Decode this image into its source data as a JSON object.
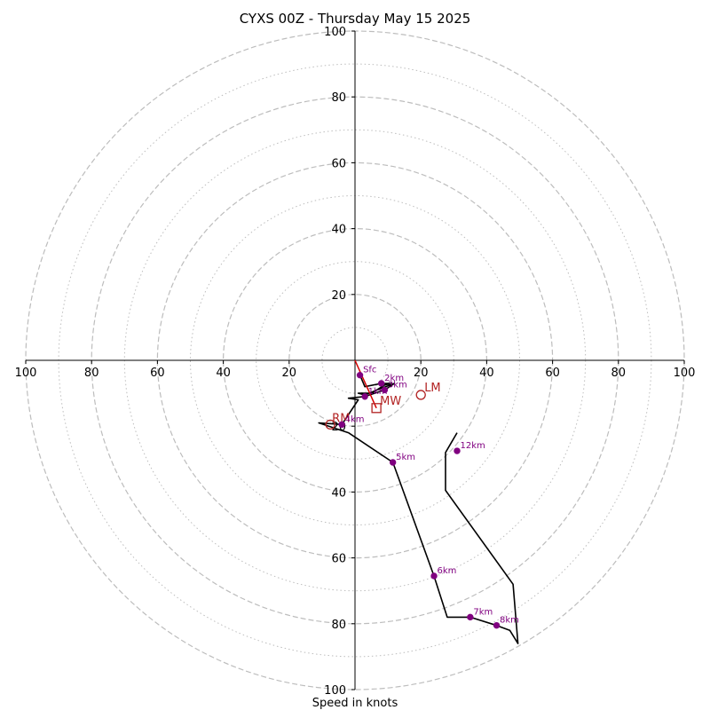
{
  "chart_data": {
    "type": "hodograph",
    "title": "CYXS 00Z - Thursday May 15 2025",
    "xlabel": "Speed in knots",
    "max_speed": 100,
    "major_rings": [
      20,
      40,
      60,
      80,
      100
    ],
    "minor_rings": [
      10,
      30,
      50,
      70,
      90
    ],
    "axis_ticks": [
      "100",
      "80",
      "60",
      "40",
      "20",
      "20",
      "40",
      "60",
      "80",
      "100"
    ],
    "vertical_ticks": [
      "100",
      "80",
      "60",
      "40",
      "20",
      "20",
      "40",
      "60",
      "80",
      "100"
    ],
    "hodograph_trace": [
      {
        "u": 1.5,
        "v": -4.5
      },
      {
        "u": 3,
        "v": -8
      },
      {
        "u": 8,
        "v": -7
      },
      {
        "u": 11,
        "v": -7
      },
      {
        "u": 9,
        "v": -7.5
      },
      {
        "u": 5,
        "v": -10
      },
      {
        "u": 1,
        "v": -10
      },
      {
        "u": 3,
        "v": -10.5
      },
      {
        "u": 8,
        "v": -8.5
      },
      {
        "u": 12,
        "v": -7
      },
      {
        "u": 9,
        "v": -9
      },
      {
        "u": 3,
        "v": -11
      },
      {
        "u": -2,
        "v": -11.5
      },
      {
        "u": 1,
        "v": -12
      },
      {
        "u": -4,
        "v": -19.5
      },
      {
        "u": -11,
        "v": -19
      },
      {
        "u": -2,
        "v": -22
      },
      {
        "u": 11.5,
        "v": -31
      },
      {
        "u": 24,
        "v": -65.5
      },
      {
        "u": 28,
        "v": -78
      },
      {
        "u": 35,
        "v": -78
      },
      {
        "u": 43,
        "v": -80.5
      },
      {
        "u": 47,
        "v": -82
      },
      {
        "u": 49.5,
        "v": -86
      },
      {
        "u": 48,
        "v": -68
      },
      {
        "u": 27.5,
        "v": -39.5
      },
      {
        "u": 27.5,
        "v": -28
      },
      {
        "u": 31,
        "v": -22
      }
    ],
    "height_markers": [
      {
        "label": "Sfc",
        "u": 1.5,
        "v": -4.5
      },
      {
        "label": "1km",
        "u": 3,
        "v": -11
      },
      {
        "label": "2km",
        "u": 8,
        "v": -7
      },
      {
        "label": "3km",
        "u": 9,
        "v": -9
      },
      {
        "label": "4km",
        "u": -4,
        "v": -19.5
      },
      {
        "label": "5km",
        "u": 11.5,
        "v": -31
      },
      {
        "label": "6km",
        "u": 24,
        "v": -65.5
      },
      {
        "label": "7km",
        "u": 35,
        "v": -78
      },
      {
        "label": "8km",
        "u": 43,
        "v": -80.5
      },
      {
        "label": "12km",
        "u": 31,
        "v": -27.5
      }
    ],
    "storm_motions": [
      {
        "label": "LM",
        "u": 20,
        "v": -10.5,
        "marker": "circle"
      },
      {
        "label": "MW",
        "u": 6.5,
        "v": -14.5,
        "marker": "square"
      },
      {
        "label": "RM",
        "u": -7.5,
        "v": -19.5,
        "marker": "circle"
      }
    ],
    "shear_vector": {
      "from": {
        "u": 0,
        "v": 0
      },
      "to": {
        "u": 6.5,
        "v": -14.5
      }
    },
    "colors": {
      "trace": "#000000",
      "markers": "#800080",
      "motion": "#b22222",
      "shear": "#d40000",
      "rings": "#bdbdbd"
    }
  }
}
